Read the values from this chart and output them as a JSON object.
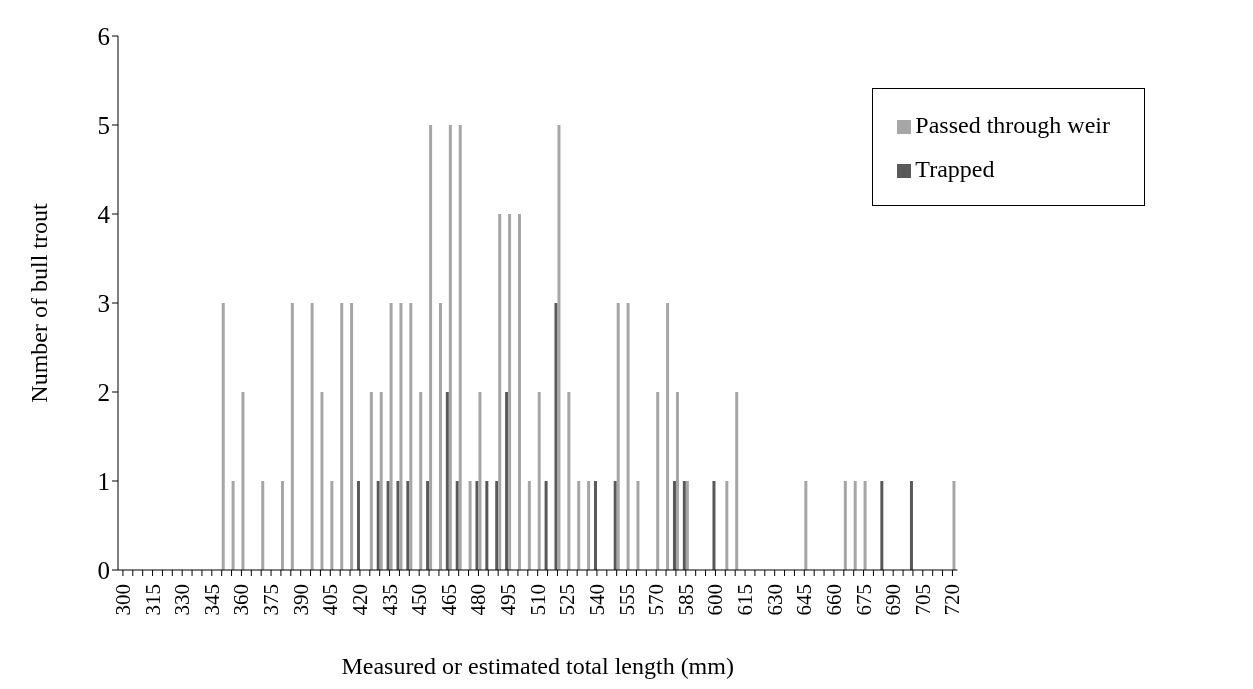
{
  "chart_data": {
    "type": "bar",
    "xlabel": "Measured or estimated total length (mm)",
    "ylabel": "Number of bull trout",
    "categories": [
      "300",
      null,
      null,
      "315",
      null,
      null,
      "330",
      null,
      null,
      "345",
      null,
      null,
      "360",
      null,
      null,
      "375",
      null,
      null,
      "390",
      null,
      null,
      "405",
      null,
      null,
      "420",
      null,
      null,
      "435",
      null,
      null,
      "450",
      null,
      null,
      "465",
      null,
      null,
      "480",
      null,
      null,
      "495",
      null,
      null,
      "510",
      null,
      null,
      "525",
      null,
      null,
      "540",
      null,
      null,
      "555",
      null,
      null,
      "570",
      null,
      null,
      "585",
      null,
      null,
      "600",
      null,
      null,
      "615",
      null,
      null,
      "630",
      null,
      null,
      "645",
      null,
      null,
      "660",
      null,
      null,
      "675",
      null,
      null,
      "690",
      null,
      null,
      "705",
      null,
      null,
      "720"
    ],
    "series": [
      {
        "name": "Trapped",
        "color": "#595959",
        "values": [
          0,
          0,
          0,
          0,
          0,
          0,
          0,
          0,
          0,
          0,
          0,
          0,
          0,
          0,
          0,
          0,
          0,
          0,
          0,
          0,
          0,
          0,
          0,
          0,
          1,
          0,
          1,
          1,
          1,
          1,
          0,
          1,
          0,
          2,
          1,
          0,
          1,
          1,
          1,
          2,
          0,
          0,
          0,
          1,
          3,
          0,
          0,
          0,
          1,
          0,
          1,
          0,
          0,
          0,
          0,
          0,
          1,
          1,
          0,
          0,
          1,
          0,
          0,
          0,
          0,
          0,
          0,
          0,
          0,
          0,
          0,
          0,
          0,
          0,
          0,
          0,
          0,
          1,
          0,
          0,
          1,
          0,
          0,
          0,
          0
        ]
      },
      {
        "name": "Passed through weir",
        "color": "#a6a6a6",
        "values": [
          0,
          0,
          0,
          0,
          0,
          0,
          0,
          0,
          0,
          0,
          3,
          1,
          2,
          0,
          1,
          0,
          1,
          3,
          0,
          3,
          2,
          1,
          3,
          3,
          0,
          2,
          2,
          3,
          3,
          3,
          2,
          5,
          3,
          5,
          5,
          1,
          2,
          0,
          4,
          4,
          4,
          1,
          2,
          0,
          5,
          2,
          1,
          1,
          0,
          0,
          3,
          3,
          1,
          0,
          2,
          3,
          2,
          1,
          0,
          0,
          0,
          1,
          2,
          0,
          0,
          0,
          0,
          0,
          0,
          1,
          0,
          0,
          0,
          1,
          1,
          1,
          0,
          0,
          0,
          0,
          0,
          0,
          0,
          0,
          1
        ]
      }
    ],
    "ylim": [
      0,
      6
    ],
    "yticks": [
      0,
      1,
      2,
      3,
      4,
      5,
      6
    ],
    "grid": false,
    "legend": "top right"
  }
}
